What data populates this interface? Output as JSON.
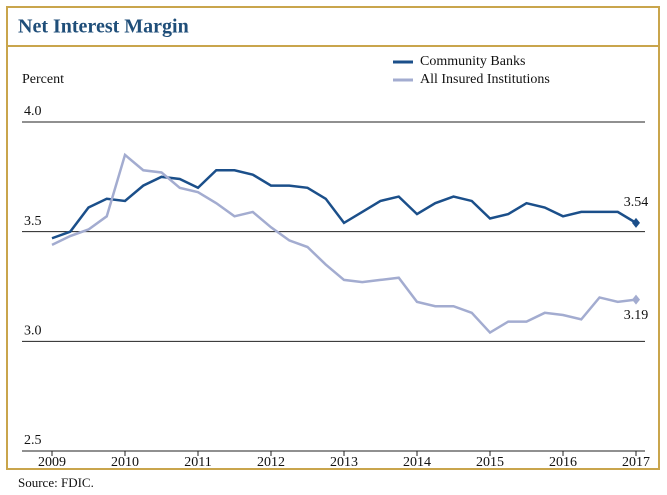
{
  "chart_data": {
    "type": "line",
    "title": "Net Interest Margin",
    "ylabel": "Percent",
    "source": "Source: FDIC.",
    "x": [
      2009,
      2009.25,
      2009.5,
      2009.75,
      2010,
      2010.25,
      2010.5,
      2010.75,
      2011,
      2011.25,
      2011.5,
      2011.75,
      2012,
      2012.25,
      2012.5,
      2012.75,
      2013,
      2013.25,
      2013.5,
      2013.75,
      2014,
      2014.25,
      2014.5,
      2014.75,
      2015,
      2015.25,
      2015.5,
      2015.75,
      2016,
      2016.25,
      2016.5,
      2016.75,
      2017
    ],
    "series": [
      {
        "name": "Community Banks",
        "color": "#1b4f8a",
        "values": [
          3.47,
          3.5,
          3.61,
          3.65,
          3.64,
          3.71,
          3.75,
          3.74,
          3.7,
          3.78,
          3.78,
          3.76,
          3.71,
          3.71,
          3.7,
          3.65,
          3.54,
          3.59,
          3.64,
          3.66,
          3.58,
          3.63,
          3.66,
          3.64,
          3.56,
          3.58,
          3.63,
          3.61,
          3.57,
          3.59,
          3.59,
          3.59,
          3.54
        ]
      },
      {
        "name": "All Insured Institutions",
        "color": "#a3acd0",
        "values": [
          3.44,
          3.48,
          3.51,
          3.57,
          3.85,
          3.78,
          3.77,
          3.7,
          3.68,
          3.63,
          3.57,
          3.59,
          3.52,
          3.46,
          3.43,
          3.35,
          3.28,
          3.27,
          3.28,
          3.29,
          3.18,
          3.16,
          3.16,
          3.13,
          3.04,
          3.09,
          3.09,
          3.13,
          3.12,
          3.1,
          3.2,
          3.18,
          3.19
        ]
      }
    ],
    "xlim": [
      2009,
      2017
    ],
    "xticks": [
      2009,
      2010,
      2011,
      2012,
      2013,
      2014,
      2015,
      2016,
      2017
    ],
    "ylim": [
      2.5,
      4.0
    ],
    "yticks": [
      2.5,
      {
        "value": 3,
        "label": "3.0"
      },
      3.5,
      {
        "value": 4,
        "label": "4.0"
      }
    ],
    "grid": true,
    "legend": "upper right"
  }
}
